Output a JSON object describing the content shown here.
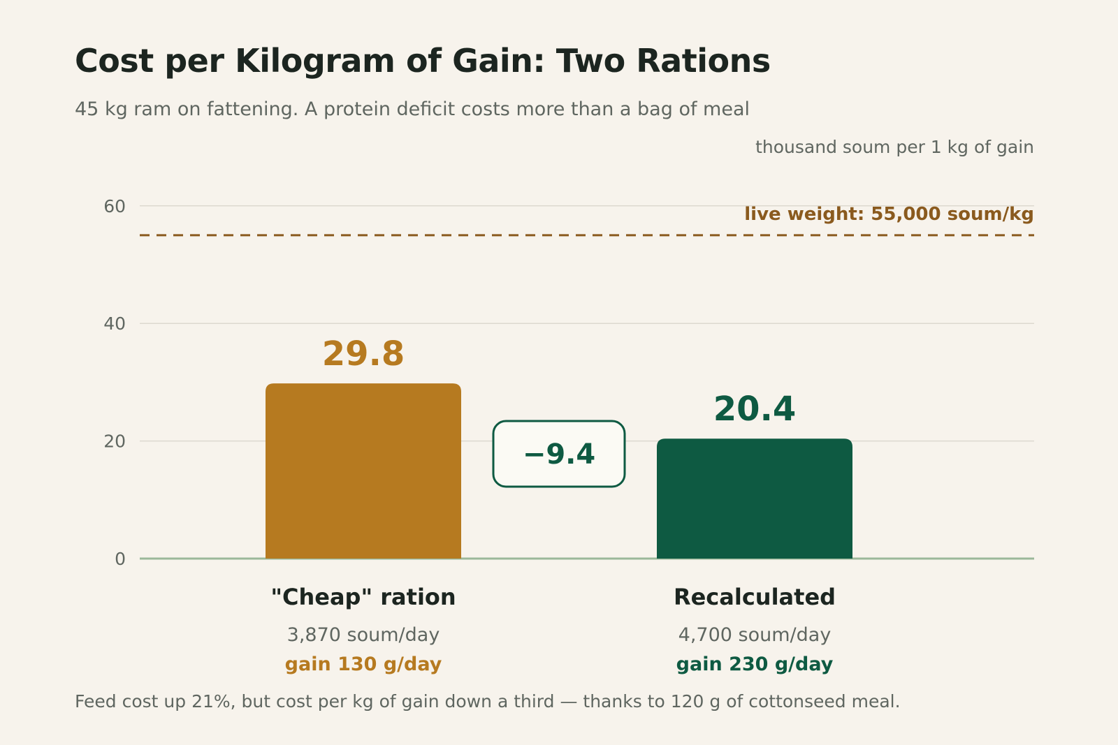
{
  "header": {
    "title": "Cost per Kilogram of Gain: Two Rations",
    "subtitle": "45 kg ram on fattening. A protein deficit costs more than a bag of meal",
    "unit": "thousand soum per 1 kg of gain"
  },
  "footnote": "Feed cost up 21%, but cost per kg of gain down a third — thanks to 120 g of cottonseed meal.",
  "colors": {
    "cheap": "#b67a20",
    "recalc": "#0e5a42",
    "reference": "#8a5a1e",
    "grid": "#ddd9cf",
    "baseline": "#9bb89a"
  },
  "chart_data": {
    "type": "bar",
    "categories": [
      "\"Cheap\" ration",
      "Recalculated"
    ],
    "values": [
      29.8,
      20.4
    ],
    "value_labels": [
      "29.8",
      "20.4"
    ],
    "costs": [
      "3,870 soum/day",
      "4,700 soum/day"
    ],
    "gains": [
      "gain 130 g/day",
      "gain 230 g/day"
    ],
    "ylim": [
      0,
      65
    ],
    "yticks": [
      0,
      20,
      40,
      60
    ],
    "ytick_labels": [
      "0",
      "20",
      "40",
      "60"
    ],
    "grid": true,
    "reference_line": {
      "value": 55,
      "label": "live weight: 55,000 soum/kg"
    },
    "difference": {
      "value": -9.4,
      "label": "−9.4"
    }
  }
}
